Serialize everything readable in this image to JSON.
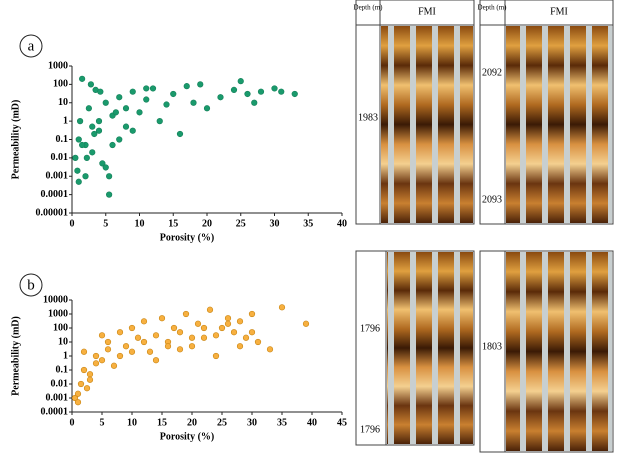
{
  "chart_data": [
    {
      "type": "scatter",
      "panel_label": "a",
      "xlabel": "Porosity (%)",
      "ylabel": "Permeability (mD)",
      "color": "#1a9a6c",
      "edge": "#14805a",
      "ylog": true,
      "x": [
        0.5,
        1,
        1.5,
        2,
        2.5,
        3,
        3.5,
        4,
        4.5,
        5,
        5.5,
        6,
        7,
        8,
        9,
        10,
        11,
        12,
        13,
        14,
        15,
        16,
        17,
        18,
        19,
        20,
        22,
        24,
        25,
        26,
        27,
        28,
        30,
        31,
        33,
        1,
        2,
        3,
        4,
        5,
        6,
        7,
        8,
        1.2,
        2.2,
        3.3,
        0.8,
        4.2,
        5.5,
        6.5,
        9,
        11,
        1.5,
        2.8
      ],
      "values": [
        0.01,
        0.1,
        200,
        0.001,
        5,
        0.02,
        50,
        0.3,
        0.005,
        10,
        0.0001,
        2,
        20,
        0.5,
        40,
        3,
        15,
        60,
        1,
        8,
        30,
        0.2,
        80,
        10,
        100,
        5,
        20,
        50,
        150,
        30,
        10,
        40,
        60,
        40,
        30,
        0.0005,
        0.05,
        0.5,
        1,
        0.003,
        0.05,
        0.1,
        5,
        1,
        0.01,
        0.2,
        0.002,
        40,
        0.001,
        3,
        0.3,
        60,
        0.05,
        100
      ],
      "xlim": [
        0,
        40
      ],
      "xticks": [
        0,
        5,
        10,
        15,
        20,
        25,
        30,
        35,
        40
      ],
      "ylim": [
        1e-05,
        1000
      ],
      "yticks": [
        1e-05,
        0.0001,
        0.001,
        0.01,
        0.1,
        1,
        10,
        100,
        1000
      ]
    },
    {
      "type": "scatter",
      "panel_label": "b",
      "xlabel": "Porosity (%)",
      "ylabel": "Permeability (mD)",
      "color": "#f7b040",
      "edge": "#c98410",
      "ylog": true,
      "x": [
        0.5,
        1,
        1.5,
        2,
        2.5,
        3,
        4,
        5,
        6,
        7,
        8,
        9,
        10,
        11,
        12,
        13,
        14,
        15,
        16,
        17,
        18,
        19,
        20,
        21,
        22,
        23,
        24,
        25,
        26,
        27,
        28,
        29,
        30,
        31,
        33,
        35,
        39,
        1,
        2,
        3,
        4,
        5,
        6,
        8,
        10,
        12,
        14,
        16,
        18,
        20,
        22,
        24,
        26,
        28,
        30
      ],
      "values": [
        0.001,
        0.002,
        0.01,
        2,
        0.005,
        0.05,
        1,
        0.5,
        10,
        0.2,
        50,
        5,
        100,
        20,
        300,
        2,
        30,
        500,
        10,
        100,
        50,
        1000,
        5,
        200,
        20,
        2000,
        1,
        100,
        500,
        50,
        300,
        20,
        1000,
        10,
        3,
        3000,
        200,
        0.0005,
        0.1,
        0.02,
        0.3,
        30,
        3,
        1,
        2,
        10,
        0.5,
        5,
        3,
        20,
        100,
        30,
        200,
        5,
        50
      ],
      "xlim": [
        0,
        45
      ],
      "xticks": [
        0,
        5,
        10,
        15,
        20,
        25,
        30,
        35,
        40,
        45
      ],
      "ylim": [
        0.0001,
        10000
      ],
      "yticks": [
        0.0001,
        0.001,
        0.01,
        0.1,
        1,
        10,
        100,
        1000,
        10000
      ]
    }
  ],
  "image_panels": [
    {
      "depth_header": "Depth (m)",
      "image_header": "FMI",
      "depths": [
        "1983"
      ]
    },
    {
      "depth_header": "Depth (m)",
      "image_header": "FMI",
      "depths": [
        "2092",
        "2093"
      ]
    },
    {
      "depths": [
        "1796",
        "1796"
      ]
    },
    {
      "depths": [
        "1803"
      ]
    }
  ]
}
